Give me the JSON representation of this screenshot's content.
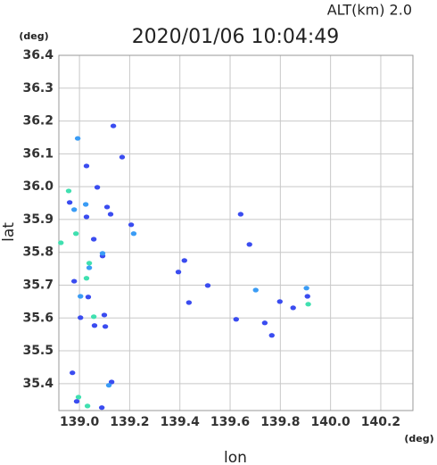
{
  "chart_data": {
    "type": "scatter",
    "title": "2020/01/06 10:04:49",
    "subtitle": "ALT(km)  2.0",
    "x_label": "lon",
    "y_label": "lat",
    "x_unit": "(deg)",
    "y_unit": "(deg)",
    "xlim": [
      138.918,
      140.328
    ],
    "ylim": [
      35.318,
      36.4
    ],
    "xticks": [
      {
        "value": 139.0,
        "label": "139.0"
      },
      139.2,
      139.4,
      139.6,
      139.8,
      {
        "value": 140.0,
        "label": "140.0"
      },
      140.2
    ],
    "yticks": [
      36.4,
      36.3,
      36.2,
      36.1,
      {
        "value": 36.0,
        "label": "36.0"
      },
      35.9,
      35.8,
      35.7,
      35.6,
      35.5,
      35.4
    ],
    "grid": true,
    "series": [
      {
        "color": "#3a4cf0",
        "x": [
          139.135,
          139.028,
          139.17,
          138.961,
          139.071,
          139.11,
          139.124,
          139.028,
          139.057,
          139.092,
          138.979,
          139.035,
          139.099,
          139.06,
          139.004,
          139.103,
          138.972,
          138.989,
          139.128,
          139.089,
          139.436,
          139.394,
          139.642,
          139.677,
          139.624,
          139.738,
          139.766,
          139.798,
          139.851,
          139.908,
          139.418,
          139.511,
          139.206
        ],
        "y": [
          36.185,
          36.063,
          36.09,
          35.952,
          35.998,
          35.938,
          35.916,
          35.908,
          35.84,
          35.789,
          35.712,
          35.664,
          35.609,
          35.577,
          35.601,
          35.574,
          35.433,
          35.346,
          35.405,
          35.327,
          35.647,
          35.74,
          35.916,
          35.824,
          35.596,
          35.585,
          35.547,
          35.65,
          35.631,
          35.666,
          35.775,
          35.699,
          35.884
        ]
      },
      {
        "color": "#3a9cf5",
        "x": [
          138.993,
          139.025,
          138.979,
          139.092,
          139.039,
          139.004,
          139.702,
          139.904,
          139.216,
          139.117
        ],
        "y": [
          36.147,
          35.946,
          35.93,
          35.797,
          35.753,
          35.666,
          35.685,
          35.691,
          35.857,
          35.395
        ]
      },
      {
        "color": "#40e0b0",
        "x": [
          138.957,
          138.986,
          139.039,
          139.028,
          139.057,
          138.996,
          139.032,
          139.911,
          138.926
        ],
        "y": [
          35.987,
          35.857,
          35.767,
          35.721,
          35.604,
          35.359,
          35.332,
          35.642,
          35.829
        ]
      }
    ]
  }
}
